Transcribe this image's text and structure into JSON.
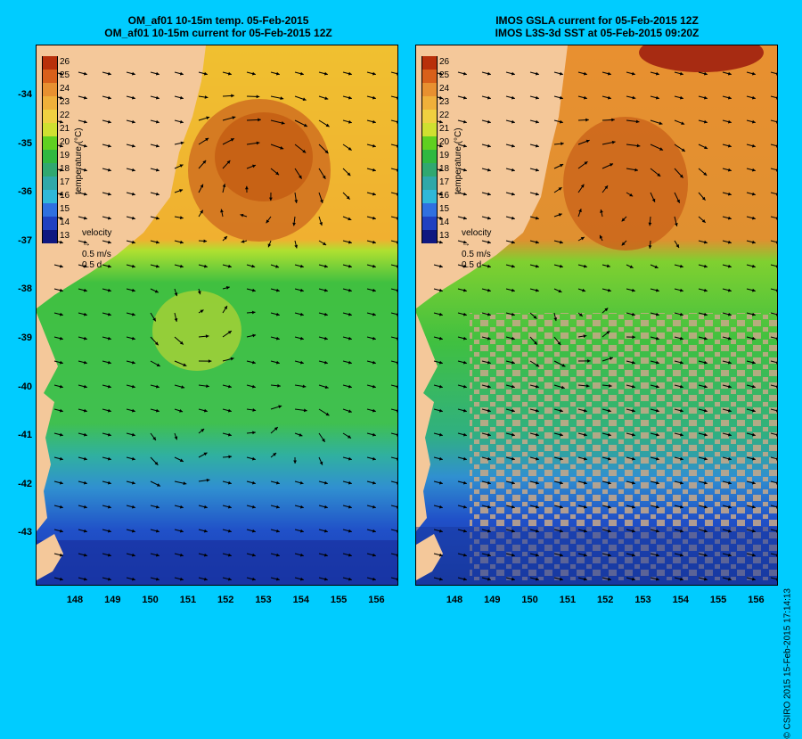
{
  "left_panel": {
    "title_line1": "OM_af01 10-15m temp. 05-Feb-2015",
    "title_line2": "OM_af01 10-15m current for 05-Feb-2015 12Z"
  },
  "right_panel": {
    "title_line1": "IMOS GSLA current for 05-Feb-2015 12Z",
    "title_line2": "IMOS L3S-3d SST at 05-Feb-2015 09:20Z"
  },
  "colorbar": {
    "title": "temperature (°C)",
    "ticks": [
      "26",
      "25",
      "24",
      "23",
      "22",
      "21",
      "20",
      "19",
      "18",
      "17",
      "16",
      "15",
      "14",
      "13"
    ],
    "colors": [
      "#b8300a",
      "#d9601a",
      "#e89030",
      "#f0b03a",
      "#f0d040",
      "#d0e030",
      "#60d020",
      "#30b840",
      "#30a870",
      "#30a8a8",
      "#30b8d8",
      "#3070e0",
      "#2040c0",
      "#101880"
    ]
  },
  "velocity_key": {
    "label": "velocity",
    "speed": "0.5 m/s",
    "duration": "0.5 d"
  },
  "y_axis": [
    "-34",
    "-35",
    "-36",
    "-37",
    "-38",
    "-39",
    "-40",
    "-41",
    "-42",
    "-43"
  ],
  "x_axis": [
    "148",
    "149",
    "150",
    "151",
    "152",
    "153",
    "154",
    "155",
    "156"
  ],
  "credit": "© CSIRO 2015   15-Feb-2015 17:14:13",
  "colors": {
    "background": "#00ccff",
    "land": "#f4c89a",
    "missing_data": "#c8a888"
  }
}
